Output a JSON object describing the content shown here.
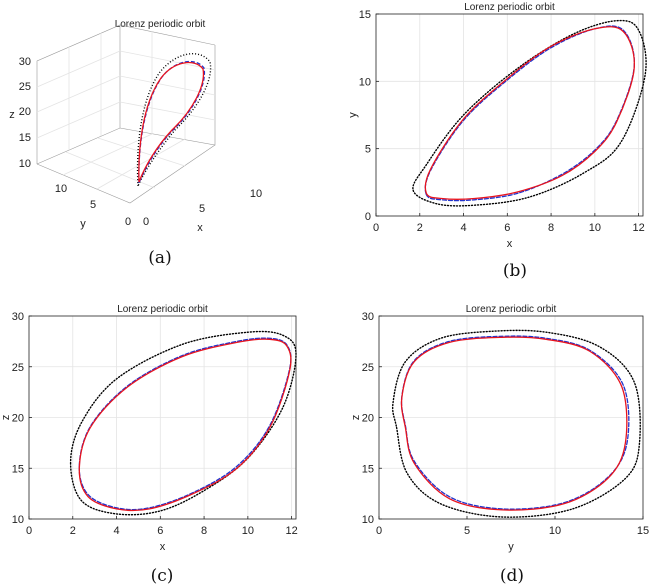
{
  "panels": [
    {
      "id": "a",
      "caption": "(a)",
      "title": "Lorenz periodic orbit",
      "xlabel": "x",
      "ylabel": "y",
      "zlabel": "z",
      "xticks": [
        "0",
        "5",
        "10"
      ],
      "yticks": [
        "0",
        "5",
        "10"
      ],
      "zticks": [
        "10",
        "15",
        "20",
        "25",
        "30"
      ]
    },
    {
      "id": "b",
      "caption": "(b)",
      "title": "Lorenz periodic orbit",
      "xlabel": "x",
      "ylabel": "y",
      "xticks": [
        "0",
        "2",
        "4",
        "6",
        "8",
        "10",
        "12"
      ],
      "yticks": [
        "0",
        "5",
        "10",
        "15"
      ]
    },
    {
      "id": "c",
      "caption": "(c)",
      "title": "Lorenz periodic orbit",
      "xlabel": "x",
      "ylabel": "z",
      "xticks": [
        "0",
        "2",
        "4",
        "6",
        "8",
        "10",
        "12"
      ],
      "yticks": [
        "10",
        "15",
        "20",
        "25",
        "30"
      ]
    },
    {
      "id": "d",
      "caption": "(d)",
      "title": "Lorenz periodic orbit",
      "xlabel": "y",
      "ylabel": "z",
      "xticks": [
        "0",
        "5",
        "10",
        "15"
      ],
      "yticks": [
        "10",
        "15",
        "20",
        "25",
        "30"
      ]
    }
  ],
  "chart_data": [
    {
      "type": "line",
      "projection": "3d",
      "title": "Lorenz periodic orbit",
      "xlabel": "x",
      "ylabel": "y",
      "zlabel": "z",
      "xlim": [
        0,
        12
      ],
      "ylim": [
        0,
        15
      ],
      "zlim": [
        10,
        30
      ],
      "grid": true,
      "series_styles": [
        {
          "style": "solid",
          "color": "#e8141e"
        },
        {
          "style": "dashed",
          "color": "#2233cc"
        },
        {
          "style": "dotted",
          "color": "#000000"
        }
      ]
    },
    {
      "type": "line",
      "title": "Lorenz periodic orbit",
      "xlabel": "x",
      "ylabel": "y",
      "xlim": [
        0,
        12.2
      ],
      "ylim": [
        0,
        15
      ],
      "grid": true,
      "series": [
        {
          "style": "solid",
          "color": "#e8141e",
          "x": [
            2.3,
            3.0,
            4.5,
            6.5,
            8.5,
            10.0,
            11.0,
            11.8,
            11.3,
            10.0,
            8.0,
            6.0,
            4.0,
            2.5,
            2.3
          ],
          "y": [
            1.7,
            1.3,
            1.3,
            1.8,
            3.0,
            4.8,
            7.0,
            11.0,
            13.7,
            13.9,
            12.6,
            10.2,
            7.2,
            3.5,
            1.7
          ]
        },
        {
          "style": "dashed",
          "color": "#2233cc",
          "x": [
            2.3,
            3.0,
            4.5,
            6.5,
            8.5,
            10.0,
            11.0,
            11.8,
            11.3,
            10.0,
            8.0,
            6.0,
            4.0,
            2.5,
            2.3
          ],
          "y": [
            1.6,
            1.2,
            1.2,
            1.7,
            3.1,
            4.9,
            7.1,
            11.1,
            13.8,
            13.9,
            12.5,
            10.1,
            7.1,
            3.4,
            1.6
          ]
        },
        {
          "style": "dotted",
          "color": "#000000",
          "x": [
            1.7,
            2.8,
            4.5,
            7.0,
            9.5,
            11.2,
            12.3,
            12.0,
            11.0,
            9.0,
            6.5,
            4.0,
            2.3,
            1.7
          ],
          "y": [
            1.9,
            0.9,
            0.8,
            1.4,
            3.2,
            5.5,
            10.5,
            13.8,
            14.5,
            13.5,
            11.0,
            7.5,
            3.8,
            1.9
          ]
        }
      ]
    },
    {
      "type": "line",
      "title": "Lorenz periodic orbit",
      "xlabel": "x",
      "ylabel": "z",
      "xlim": [
        0,
        12.2
      ],
      "ylim": [
        10,
        30
      ],
      "grid": true,
      "series": [
        {
          "style": "solid",
          "color": "#e8141e",
          "x": [
            2.3,
            2.7,
            4.0,
            5.5,
            7.5,
            9.5,
            11.0,
            11.9,
            11.8,
            11.0,
            9.5,
            7.0,
            4.5,
            2.8,
            2.3
          ],
          "y": [
            15.0,
            12.2,
            11.0,
            11.0,
            12.5,
            15.0,
            19.0,
            24.5,
            27.0,
            27.7,
            27.4,
            26.0,
            23.0,
            19.0,
            15.0
          ]
        },
        {
          "style": "dashed",
          "color": "#2233cc",
          "x": [
            2.3,
            2.7,
            4.0,
            5.5,
            7.5,
            9.5,
            11.0,
            11.9,
            11.8,
            11.0,
            9.5,
            7.0,
            4.5,
            2.8,
            2.3
          ],
          "y": [
            15.2,
            12.4,
            11.1,
            11.1,
            12.6,
            15.2,
            19.2,
            24.7,
            27.1,
            27.8,
            27.5,
            26.1,
            23.1,
            19.1,
            15.2
          ]
        },
        {
          "style": "dotted",
          "color": "#000000",
          "x": [
            1.9,
            2.4,
            4.0,
            6.0,
            8.0,
            10.0,
            11.6,
            12.2,
            11.6,
            10.0,
            7.0,
            4.0,
            2.4,
            1.9
          ],
          "y": [
            15.5,
            11.8,
            10.5,
            10.8,
            12.8,
            16.0,
            21.0,
            26.2,
            28.1,
            28.4,
            27.2,
            23.8,
            19.5,
            15.5
          ]
        }
      ]
    },
    {
      "type": "line",
      "title": "Lorenz periodic orbit",
      "xlabel": "y",
      "ylabel": "z",
      "xlim": [
        0,
        15
      ],
      "ylim": [
        10,
        30
      ],
      "grid": true,
      "series": [
        {
          "style": "solid",
          "color": "#e8141e",
          "x": [
            1.5,
            2.0,
            4.0,
            7.0,
            10.5,
            13.0,
            14.0,
            13.8,
            12.0,
            9.5,
            7.0,
            4.0,
            2.0,
            1.3,
            1.5
          ],
          "y": [
            19.0,
            15.5,
            12.0,
            10.9,
            11.5,
            14.0,
            17.5,
            23.0,
            26.5,
            27.7,
            27.9,
            27.4,
            25.5,
            22.0,
            19.0
          ]
        },
        {
          "style": "dashed",
          "color": "#2233cc",
          "x": [
            1.5,
            2.0,
            4.0,
            7.0,
            10.5,
            13.0,
            14.1,
            13.9,
            12.0,
            9.5,
            7.0,
            4.0,
            2.0,
            1.3,
            1.5
          ],
          "y": [
            19.2,
            15.7,
            12.2,
            11.0,
            11.6,
            14.1,
            17.6,
            23.1,
            26.6,
            27.8,
            28.0,
            27.5,
            25.6,
            22.1,
            19.2
          ]
        },
        {
          "style": "dotted",
          "color": "#000000",
          "x": [
            1.0,
            1.6,
            3.5,
            7.0,
            11.0,
            14.0,
            14.8,
            14.5,
            12.5,
            9.5,
            6.5,
            3.5,
            1.5,
            0.8,
            1.0
          ],
          "y": [
            19.0,
            14.5,
            11.5,
            10.2,
            11.0,
            14.0,
            17.5,
            23.5,
            27.0,
            28.4,
            28.5,
            27.8,
            25.5,
            21.5,
            19.0
          ]
        }
      ]
    }
  ]
}
